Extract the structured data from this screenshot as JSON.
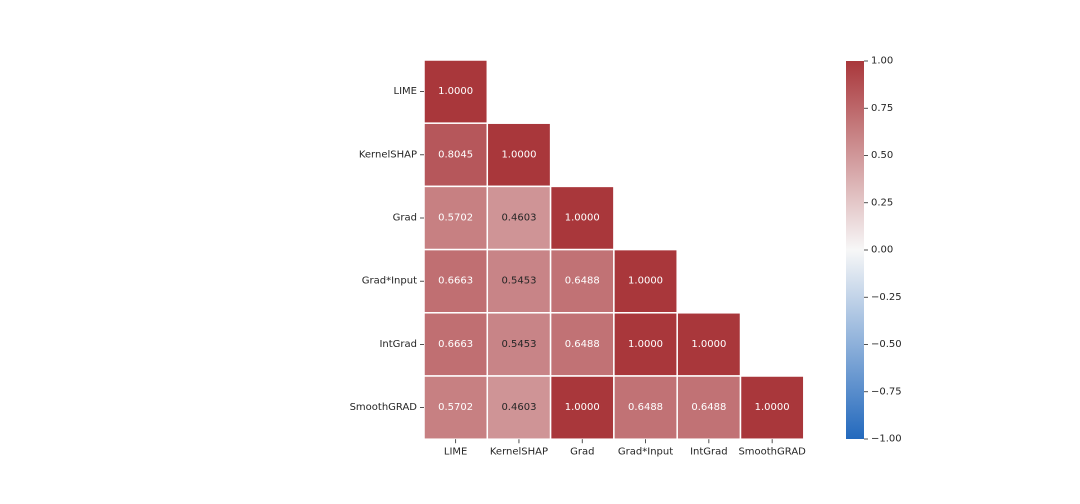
{
  "chart_data": {
    "type": "heatmap",
    "title": "",
    "xlabel": "",
    "ylabel": "",
    "rows": [
      "LIME",
      "KernelSHAP",
      "Grad",
      "Grad*Input",
      "IntGrad",
      "SmoothGRAD"
    ],
    "columns": [
      "LIME",
      "KernelSHAP",
      "Grad",
      "Grad*Input",
      "IntGrad",
      "SmoothGRAD"
    ],
    "mask": "lower-triangle",
    "values": [
      [
        1.0,
        null,
        null,
        null,
        null,
        null
      ],
      [
        0.8045,
        1.0,
        null,
        null,
        null,
        null
      ],
      [
        0.5702,
        0.4603,
        1.0,
        null,
        null,
        null
      ],
      [
        0.6663,
        0.5453,
        0.6488,
        1.0,
        null,
        null
      ],
      [
        0.6663,
        0.5453,
        0.6488,
        1.0,
        1.0,
        null
      ],
      [
        0.5702,
        0.4603,
        1.0,
        0.6488,
        0.6488,
        1.0
      ]
    ],
    "value_format": "4-decimal",
    "colormap": "vlag",
    "vmin": -1.0,
    "vmax": 1.0,
    "colorbar": {
      "ticks": [
        1.0,
        0.75,
        0.5,
        0.25,
        0.0,
        -0.25,
        -0.5,
        -0.75,
        -1.0
      ],
      "tick_labels": [
        "1.00",
        "0.75",
        "0.50",
        "0.25",
        "0.00",
        "−0.25",
        "−0.50",
        "−0.75",
        "−1.00"
      ]
    },
    "colors": {
      "negative": "#2369bd",
      "neutral": "#f7f7f7",
      "positive": "#a9373b",
      "cell_border": "#ffffff",
      "text_light": "#ffffff",
      "text_dark": "#262626"
    }
  }
}
